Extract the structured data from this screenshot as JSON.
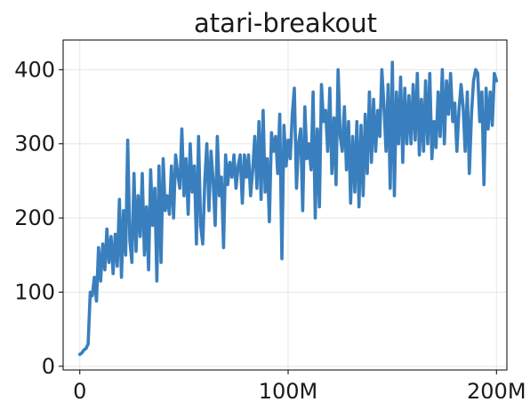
{
  "chart_data": {
    "type": "line",
    "title": "atari-breakout",
    "xlabel": "",
    "ylabel": "",
    "xlim": [
      -8000000,
      205000000
    ],
    "ylim": [
      -5,
      440
    ],
    "grid": true,
    "x_ticks": [
      {
        "value": 0,
        "label": "0"
      },
      {
        "value": 100000000,
        "label": "100M"
      },
      {
        "value": 200000000,
        "label": "200M"
      }
    ],
    "y_ticks": [
      {
        "value": 0,
        "label": "0"
      },
      {
        "value": 100,
        "label": "100"
      },
      {
        "value": 200,
        "label": "200"
      },
      {
        "value": 300,
        "label": "300"
      },
      {
        "value": 400,
        "label": "400"
      }
    ],
    "series": [
      {
        "color": "#3a7fbd",
        "x": [
          0,
          1000000,
          2000000,
          3000000,
          4000000,
          5000000,
          6000000,
          7000000,
          8000000,
          9000000,
          10000000,
          11000000,
          12000000,
          13000000,
          14000000,
          15000000,
          16000000,
          17000000,
          18000000,
          19000000,
          20000000,
          21000000,
          22000000,
          23000000,
          24000000,
          25000000,
          26000000,
          27000000,
          28000000,
          29000000,
          30000000,
          31000000,
          32000000,
          33000000,
          34000000,
          35000000,
          36000000,
          37000000,
          38000000,
          39000000,
          40000000,
          41000000,
          42000000,
          43000000,
          44000000,
          45000000,
          46000000,
          47000000,
          48000000,
          49000000,
          50000000,
          51000000,
          52000000,
          53000000,
          54000000,
          55000000,
          56000000,
          57000000,
          58000000,
          59000000,
          60000000,
          61000000,
          62000000,
          63000000,
          64000000,
          65000000,
          66000000,
          67000000,
          68000000,
          69000000,
          70000000,
          71000000,
          72000000,
          73000000,
          74000000,
          75000000,
          76000000,
          77000000,
          78000000,
          79000000,
          80000000,
          81000000,
          82000000,
          83000000,
          84000000,
          85000000,
          86000000,
          87000000,
          88000000,
          89000000,
          90000000,
          91000000,
          92000000,
          93000000,
          94000000,
          95000000,
          96000000,
          97000000,
          98000000,
          99000000,
          100000000,
          101000000,
          102000000,
          103000000,
          104000000,
          105000000,
          106000000,
          107000000,
          108000000,
          109000000,
          110000000,
          111000000,
          112000000,
          113000000,
          114000000,
          115000000,
          116000000,
          117000000,
          118000000,
          119000000,
          120000000,
          121000000,
          122000000,
          123000000,
          124000000,
          125000000,
          126000000,
          127000000,
          128000000,
          129000000,
          130000000,
          131000000,
          132000000,
          133000000,
          134000000,
          135000000,
          136000000,
          137000000,
          138000000,
          139000000,
          140000000,
          141000000,
          142000000,
          143000000,
          144000000,
          145000000,
          146000000,
          147000000,
          148000000,
          149000000,
          150000000,
          151000000,
          152000000,
          153000000,
          154000000,
          155000000,
          156000000,
          157000000,
          158000000,
          159000000,
          160000000,
          161000000,
          162000000,
          163000000,
          164000000,
          165000000,
          166000000,
          167000000,
          168000000,
          169000000,
          170000000,
          171000000,
          172000000,
          173000000,
          174000000,
          175000000,
          176000000,
          177000000,
          178000000,
          179000000,
          180000000,
          181000000,
          182000000,
          183000000,
          184000000,
          185000000,
          186000000,
          187000000,
          188000000,
          189000000,
          190000000,
          191000000,
          192000000,
          193000000,
          194000000,
          195000000,
          196000000,
          197000000,
          198000000,
          199000000,
          200000000
        ],
        "y": [
          16,
          18,
          22,
          24,
          30,
          100,
          95,
          120,
          88,
          160,
          115,
          165,
          130,
          185,
          140,
          175,
          125,
          178,
          135,
          225,
          120,
          210,
          150,
          305,
          170,
          140,
          260,
          155,
          230,
          175,
          260,
          150,
          215,
          130,
          265,
          190,
          240,
          115,
          270,
          140,
          280,
          210,
          230,
          205,
          270,
          200,
          285,
          260,
          240,
          320,
          230,
          280,
          205,
          300,
          235,
          270,
          165,
          310,
          190,
          165,
          250,
          300,
          210,
          290,
          250,
          190,
          310,
          230,
          255,
          160,
          285,
          245,
          275,
          255,
          285,
          240,
          270,
          285,
          220,
          285,
          255,
          285,
          230,
          265,
          310,
          240,
          330,
          225,
          345,
          235,
          280,
          195,
          315,
          290,
          310,
          260,
          340,
          145,
          325,
          270,
          305,
          280,
          340,
          375,
          240,
          300,
          320,
          210,
          350,
          280,
          300,
          265,
          370,
          200,
          320,
          215,
          380,
          330,
          345,
          290,
          375,
          260,
          335,
          245,
          400,
          310,
          290,
          350,
          265,
          330,
          220,
          310,
          235,
          330,
          215,
          325,
          230,
          340,
          260,
          370,
          275,
          360,
          290,
          345,
          310,
          400,
          350,
          290,
          380,
          240,
          410,
          230,
          370,
          300,
          390,
          275,
          375,
          300,
          365,
          300,
          380,
          305,
          395,
          285,
          360,
          290,
          385,
          300,
          395,
          280,
          330,
          295,
          370,
          310,
          400,
          300,
          385,
          340,
          395,
          330,
          355,
          290,
          345,
          380,
          350,
          290,
          370,
          260,
          340,
          385,
          400,
          395,
          330,
          370,
          245,
          375,
          320,
          370,
          325,
          395,
          385
        ]
      }
    ]
  }
}
